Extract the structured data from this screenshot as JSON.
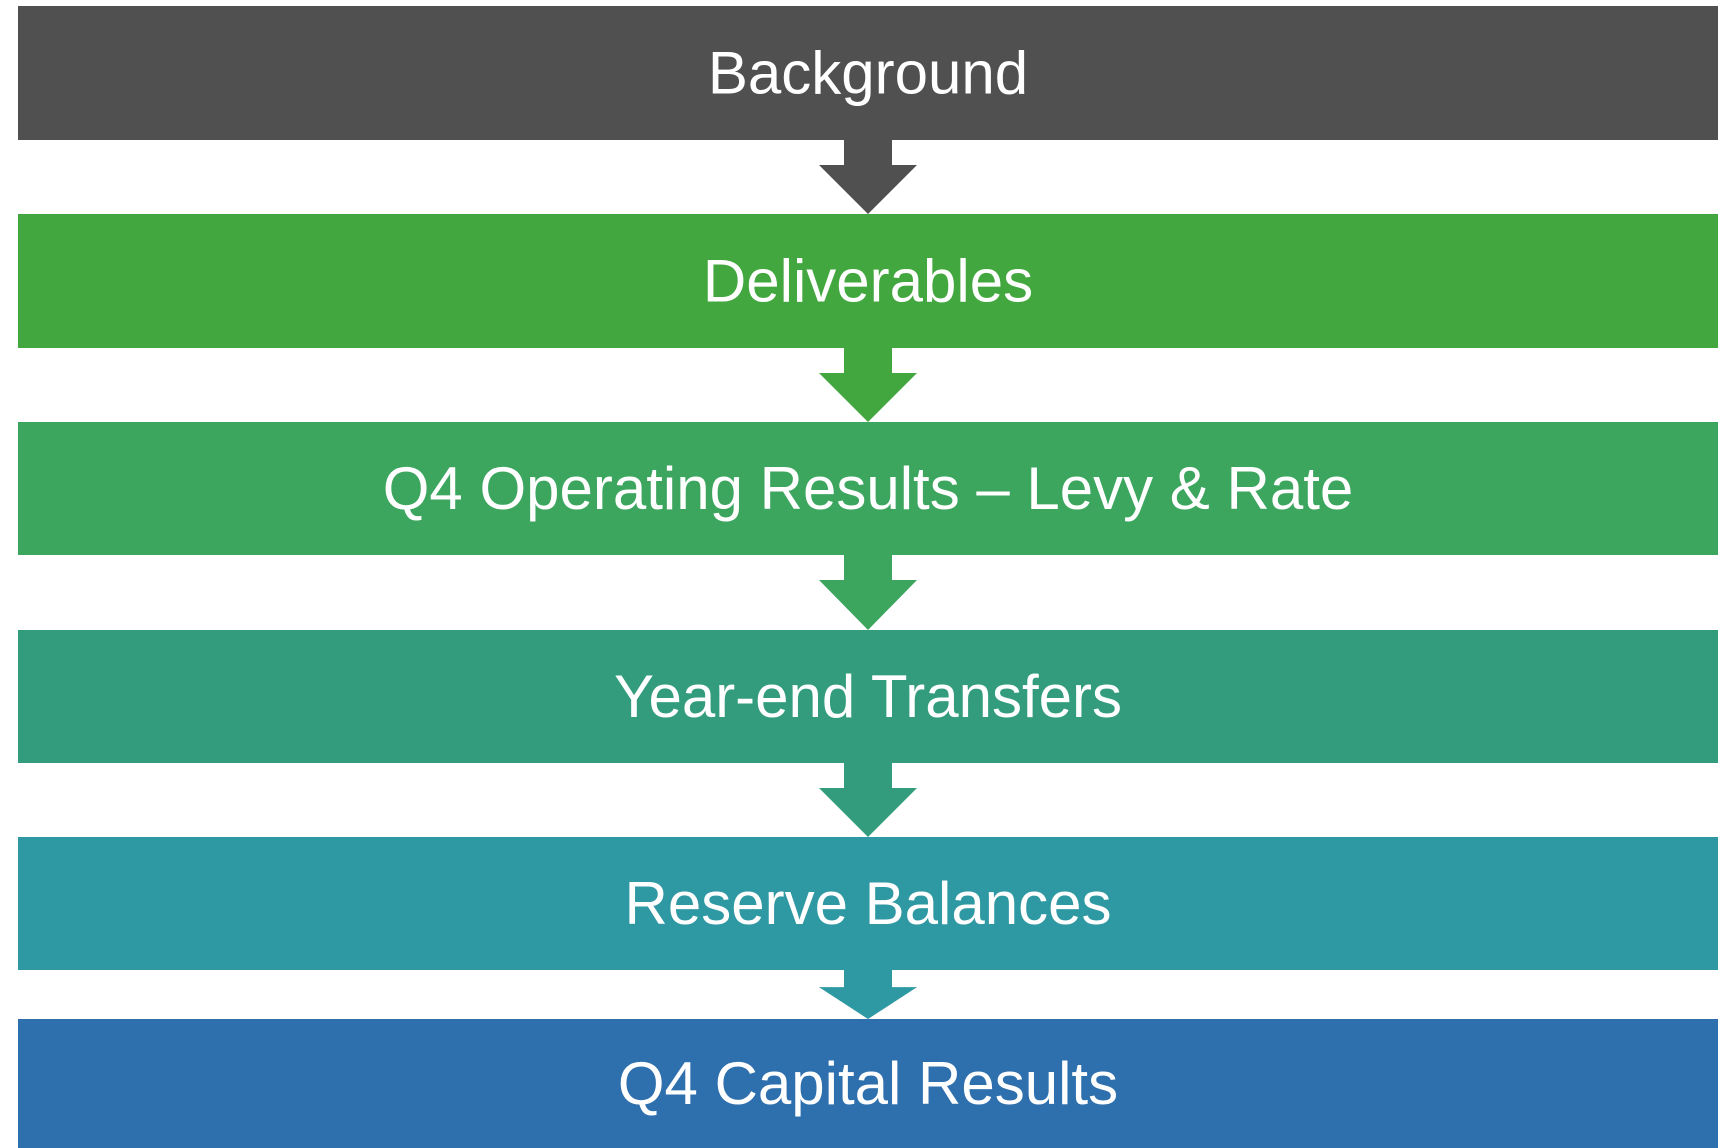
{
  "steps": [
    {
      "label": "Background",
      "color": "#505050"
    },
    {
      "label": "Deliverables",
      "color": "#43a73f"
    },
    {
      "label": "Q4 Operating Results – Levy & Rate",
      "color": "#3ca55e"
    },
    {
      "label": "Year-end Transfers",
      "color": "#329c7c"
    },
    {
      "label": "Reserve Balances",
      "color": "#2e98a3"
    },
    {
      "label": "Q4 Capital Results",
      "color": "#2e6fad"
    }
  ]
}
